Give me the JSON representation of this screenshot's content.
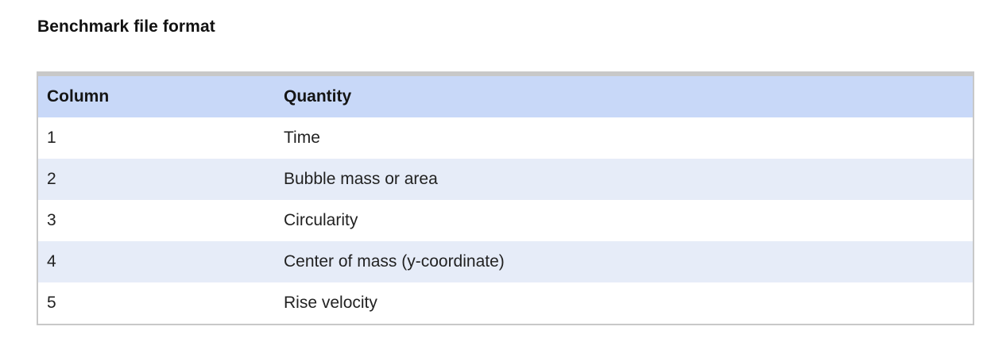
{
  "title": "Benchmark file format",
  "table": {
    "headers": [
      "Column",
      "Quantity"
    ],
    "rows": [
      [
        "1",
        "Time"
      ],
      [
        "2",
        "Bubble mass or area"
      ],
      [
        "3",
        "Circularity"
      ],
      [
        "4",
        "Center of mass (y-coordinate)"
      ],
      [
        "5",
        "Rise velocity"
      ]
    ]
  }
}
